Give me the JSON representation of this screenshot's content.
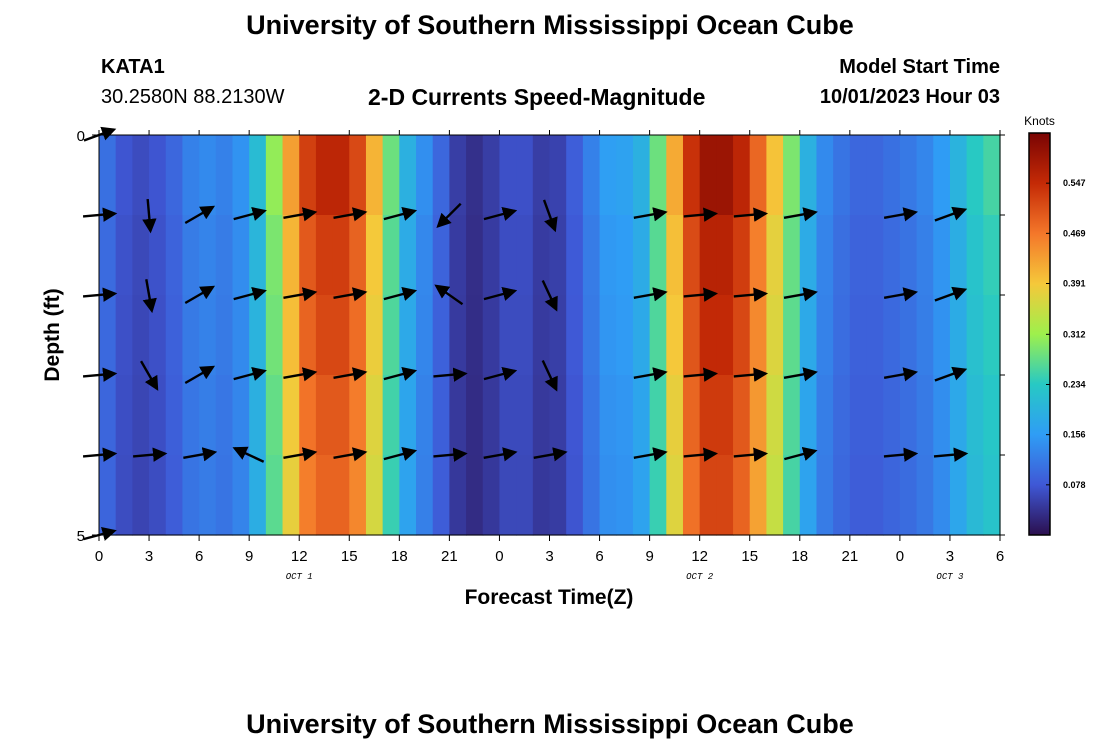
{
  "header": {
    "title": "University of Southern Mississippi Ocean Cube",
    "station_id": "KATA1",
    "station_coords": "30.2580N  88.2130W",
    "subtitle": "2-D Currents Speed-Magnitude",
    "model_start_label": "Model Start Time",
    "model_start_value": "10/01/2023 Hour 03"
  },
  "footer": {
    "title": "University of Southern Mississippi Ocean Cube"
  },
  "chart_data": {
    "type": "heatmap",
    "title": "2-D Currents Speed-Magnitude",
    "xlabel": "Forecast Time(Z)",
    "ylabel": "Depth (ft)",
    "x_ticks": [
      "0",
      "3",
      "6",
      "9",
      "12",
      "15",
      "18",
      "21",
      "0",
      "3",
      "6",
      "9",
      "12",
      "15",
      "18",
      "21",
      "0",
      "3",
      "6"
    ],
    "day_labels": [
      {
        "label": "OCT 1",
        "at_hour": 12
      },
      {
        "label": "OCT 2",
        "at_hour": 36
      },
      {
        "label": "OCT 3",
        "at_hour": 51
      }
    ],
    "y_ticks": [
      "0",
      "5"
    ],
    "ylim": [
      0,
      5
    ],
    "y_inverted": true,
    "x_range_hours": [
      0,
      54
    ],
    "colorbar": {
      "label": "Knots",
      "ticks": [
        "0.547",
        "0.469",
        "0.391",
        "0.312",
        "0.234",
        "0.156",
        "0.078"
      ],
      "range": [
        0,
        0.625
      ],
      "colormap": [
        "#2b0f4e",
        "#3f58d6",
        "#2f9df5",
        "#27c9c4",
        "#9ef04c",
        "#f5c83a",
        "#f4772a",
        "#c42a06",
        "#7a0403"
      ]
    },
    "speed_profile_hours": [
      0,
      1,
      2,
      3,
      4,
      5,
      6,
      7,
      8,
      9,
      10,
      11,
      12,
      13,
      14,
      15,
      16,
      17,
      18,
      19,
      20,
      21,
      22,
      23,
      24,
      25,
      26,
      27,
      28,
      29,
      30,
      31,
      32,
      33,
      34,
      35,
      36,
      37,
      38,
      39,
      40,
      41,
      42,
      43,
      44,
      45,
      46,
      47,
      48,
      49,
      50,
      51,
      52,
      53,
      54
    ],
    "speed_profile_knots": [
      0.12,
      0.09,
      0.06,
      0.07,
      0.08,
      0.11,
      0.14,
      0.13,
      0.12,
      0.17,
      0.25,
      0.36,
      0.5,
      0.55,
      0.56,
      0.55,
      0.48,
      0.34,
      0.22,
      0.16,
      0.12,
      0.07,
      0.03,
      0.04,
      0.06,
      0.08,
      0.06,
      0.04,
      0.07,
      0.1,
      0.15,
      0.17,
      0.16,
      0.22,
      0.34,
      0.5,
      0.58,
      0.6,
      0.58,
      0.53,
      0.44,
      0.35,
      0.23,
      0.15,
      0.12,
      0.1,
      0.09,
      0.1,
      0.11,
      0.12,
      0.14,
      0.17,
      0.22,
      0.25,
      0.26
    ],
    "depth_speed_factors": [
      1.0,
      0.95,
      0.93,
      0.9,
      0.88
    ],
    "vector_rows_depth_ft": [
      0,
      1,
      2,
      3,
      4,
      5
    ],
    "vector_columns_hours": [
      0,
      3,
      6,
      9,
      12,
      15,
      18,
      21,
      24,
      27,
      30,
      33,
      36,
      39,
      42,
      45,
      48,
      51,
      54
    ],
    "vector_direction_deg": [
      [
        20,
        null,
        null,
        null,
        null,
        null,
        null,
        null,
        null,
        null,
        null,
        null,
        null,
        null,
        null,
        null,
        null,
        null,
        null
      ],
      [
        5,
        275,
        30,
        15,
        10,
        10,
        15,
        225,
        15,
        290,
        null,
        10,
        5,
        5,
        10,
        null,
        10,
        20,
        null
      ],
      [
        5,
        280,
        30,
        15,
        10,
        10,
        15,
        145,
        15,
        295,
        null,
        10,
        5,
        5,
        10,
        null,
        10,
        20,
        null
      ],
      [
        5,
        300,
        30,
        15,
        10,
        10,
        15,
        5,
        15,
        295,
        null,
        10,
        5,
        5,
        10,
        null,
        10,
        20,
        null
      ],
      [
        5,
        5,
        10,
        155,
        10,
        10,
        15,
        5,
        10,
        10,
        null,
        10,
        5,
        5,
        15,
        null,
        5,
        5,
        null
      ],
      [
        15,
        null,
        null,
        null,
        null,
        null,
        null,
        null,
        null,
        null,
        null,
        null,
        null,
        null,
        null,
        null,
        null,
        null,
        null
      ]
    ]
  }
}
